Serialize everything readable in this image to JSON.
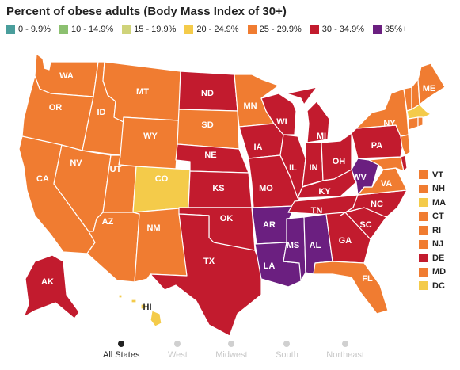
{
  "title": "Percent of obese adults (Body Mass Index of 30+)",
  "legend": [
    {
      "label": "0 - 9.9%",
      "color": "#4a9e9c"
    },
    {
      "label": "10 - 14.9%",
      "color": "#8cc070"
    },
    {
      "label": "15 - 19.9%",
      "color": "#cfd37a"
    },
    {
      "label": "20 - 24.9%",
      "color": "#f4cb4a"
    },
    {
      "label": "25 - 29.9%",
      "color": "#f07c31"
    },
    {
      "label": "30 - 34.9%",
      "color": "#c21b2e"
    },
    {
      "label": "35%+",
      "color": "#6b1f80"
    }
  ],
  "states": [
    {
      "abbr": "WA",
      "bin": 4
    },
    {
      "abbr": "OR",
      "bin": 4
    },
    {
      "abbr": "CA",
      "bin": 4
    },
    {
      "abbr": "ID",
      "bin": 4
    },
    {
      "abbr": "NV",
      "bin": 4
    },
    {
      "abbr": "MT",
      "bin": 4
    },
    {
      "abbr": "WY",
      "bin": 4
    },
    {
      "abbr": "UT",
      "bin": 4
    },
    {
      "abbr": "AZ",
      "bin": 4
    },
    {
      "abbr": "CO",
      "bin": 3
    },
    {
      "abbr": "NM",
      "bin": 4
    },
    {
      "abbr": "ND",
      "bin": 5
    },
    {
      "abbr": "SD",
      "bin": 4
    },
    {
      "abbr": "NE",
      "bin": 5
    },
    {
      "abbr": "KS",
      "bin": 5
    },
    {
      "abbr": "OK",
      "bin": 5
    },
    {
      "abbr": "TX",
      "bin": 5
    },
    {
      "abbr": "MN",
      "bin": 4
    },
    {
      "abbr": "IA",
      "bin": 5
    },
    {
      "abbr": "MO",
      "bin": 5
    },
    {
      "abbr": "AR",
      "bin": 6
    },
    {
      "abbr": "LA",
      "bin": 6
    },
    {
      "abbr": "WI",
      "bin": 5
    },
    {
      "abbr": "IL",
      "bin": 5
    },
    {
      "abbr": "MI",
      "bin": 5
    },
    {
      "abbr": "IN",
      "bin": 5
    },
    {
      "abbr": "OH",
      "bin": 5
    },
    {
      "abbr": "KY",
      "bin": 5
    },
    {
      "abbr": "TN",
      "bin": 5
    },
    {
      "abbr": "MS",
      "bin": 6
    },
    {
      "abbr": "AL",
      "bin": 6
    },
    {
      "abbr": "GA",
      "bin": 5
    },
    {
      "abbr": "FL",
      "bin": 4
    },
    {
      "abbr": "SC",
      "bin": 5
    },
    {
      "abbr": "NC",
      "bin": 5
    },
    {
      "abbr": "VA",
      "bin": 4
    },
    {
      "abbr": "WV",
      "bin": 6
    },
    {
      "abbr": "PA",
      "bin": 5
    },
    {
      "abbr": "NY",
      "bin": 4
    },
    {
      "abbr": "ME",
      "bin": 4
    },
    {
      "abbr": "AK",
      "bin": 5
    },
    {
      "abbr": "HI",
      "bin": 3
    }
  ],
  "east_states": [
    {
      "abbr": "VT",
      "bin": 4
    },
    {
      "abbr": "NH",
      "bin": 4
    },
    {
      "abbr": "MA",
      "bin": 3
    },
    {
      "abbr": "CT",
      "bin": 4
    },
    {
      "abbr": "RI",
      "bin": 4
    },
    {
      "abbr": "NJ",
      "bin": 4
    },
    {
      "abbr": "DE",
      "bin": 5
    },
    {
      "abbr": "MD",
      "bin": 4
    },
    {
      "abbr": "DC",
      "bin": 3
    }
  ],
  "tabs": [
    {
      "label": "All States",
      "active": true
    },
    {
      "label": "West",
      "active": false
    },
    {
      "label": "Midwest",
      "active": false
    },
    {
      "label": "South",
      "active": false
    },
    {
      "label": "Northeast",
      "active": false
    }
  ]
}
